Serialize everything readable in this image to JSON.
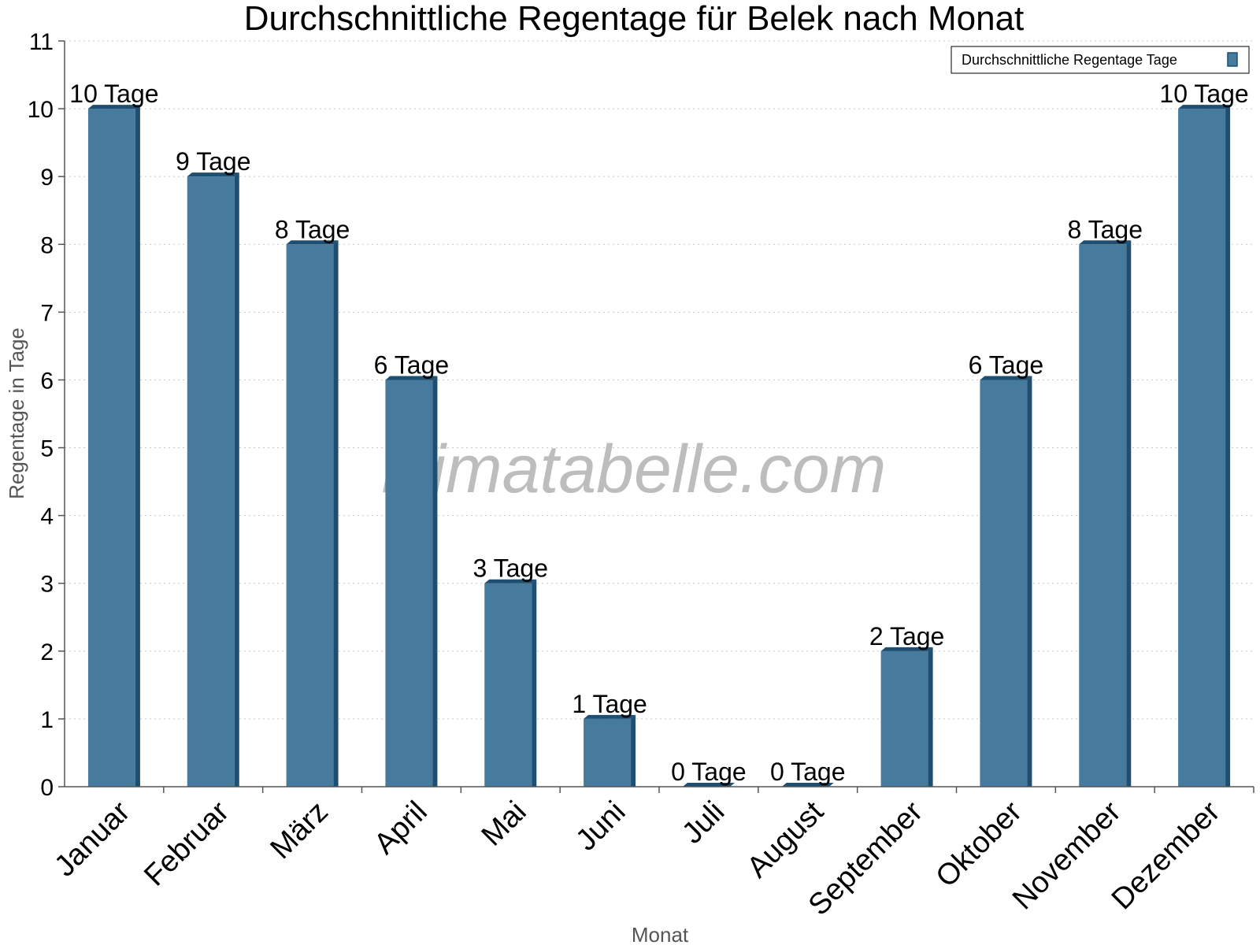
{
  "watermark": "klimatabelle.com",
  "chart_data": {
    "type": "bar",
    "title": "Durchschnittliche Regentage für Belek nach Monat",
    "xlabel": "Monat",
    "ylabel": "Regentage in Tage",
    "categories": [
      "Januar",
      "Februar",
      "März",
      "April",
      "Mai",
      "Juni",
      "Juli",
      "August",
      "September",
      "Oktober",
      "November",
      "Dezember"
    ],
    "series": [
      {
        "name": "Durchschnittliche Regentage Tage",
        "values": [
          10,
          9,
          8,
          6,
          3,
          1,
          0,
          0,
          2,
          6,
          8,
          10
        ],
        "labels": [
          "10 Tage",
          "9 Tage",
          "8 Tage",
          "6 Tage",
          "3 Tage",
          "1 Tage",
          "0 Tage",
          "0 Tage",
          "2 Tage",
          "6 Tage",
          "8 Tage",
          "10 Tage"
        ]
      }
    ],
    "ylim": [
      0,
      11
    ],
    "yticks": [
      "0",
      "1",
      "2",
      "3",
      "4",
      "5",
      "6",
      "7",
      "8",
      "9",
      "10",
      "11"
    ],
    "grid": true,
    "legend_position": "top-right",
    "colors": {
      "bar": "#467b9e",
      "bar_side": "#1e4e70",
      "bar_top": "#1e4e70",
      "grid": "#c8c8c8",
      "axis": "#555555"
    }
  }
}
